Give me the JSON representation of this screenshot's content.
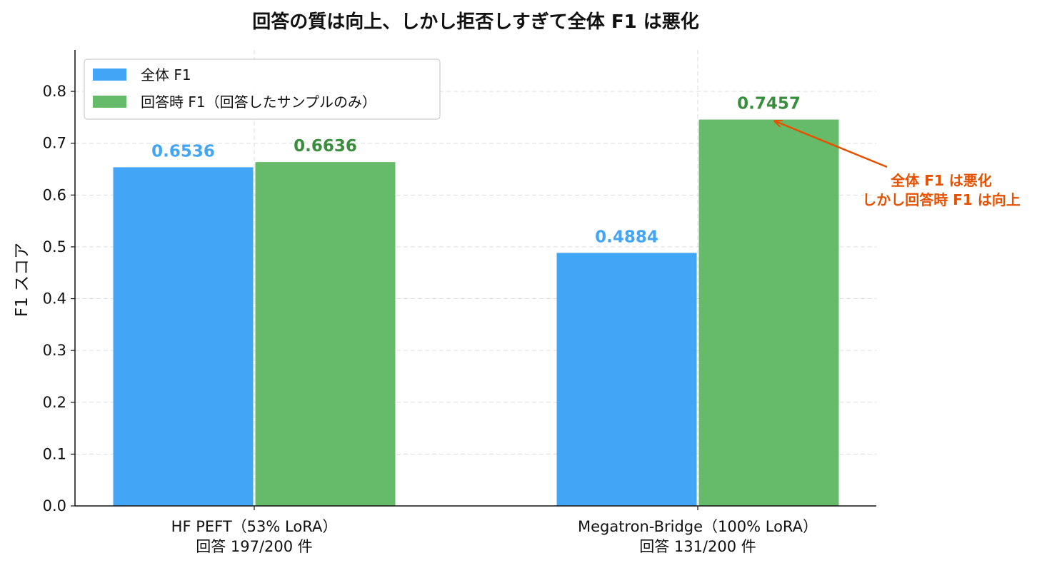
{
  "chart_data": {
    "type": "bar",
    "title": "回答の質は向上、しかし拒否しすぎて全体 F1 は悪化",
    "ylabel": "F1 スコア",
    "xlabel": "",
    "ylim": [
      0,
      0.88
    ],
    "yticks": [
      "0.0",
      "0.1",
      "0.2",
      "0.3",
      "0.4",
      "0.5",
      "0.6",
      "0.7",
      "0.8"
    ],
    "grid": true,
    "legend_position": "top-left",
    "categories": [
      {
        "line1": "HF PEFT（53% LoRA）",
        "line2": "回答 197/200 件"
      },
      {
        "line1": "Megatron-Bridge（100% LoRA）",
        "line2": "回答 131/200 件"
      }
    ],
    "series": [
      {
        "name": "全体 F1",
        "color": "#42a5f5",
        "label_color": "#42a5f5",
        "values": [
          0.6536,
          0.4884
        ],
        "labels": [
          "0.6536",
          "0.4884"
        ]
      },
      {
        "name": "回答時 F1（回答したサンプルのみ）",
        "color": "#66bb6a",
        "label_color": "#388e3c",
        "values": [
          0.6636,
          0.7457
        ],
        "labels": [
          "0.6636",
          "0.7457"
        ]
      }
    ],
    "annotation": {
      "line1": "全体 F1 は悪化",
      "line2": "しかし回答時 F1 は向上",
      "color": "#e65100",
      "points_to": {
        "series": 1,
        "category": 1
      }
    }
  }
}
